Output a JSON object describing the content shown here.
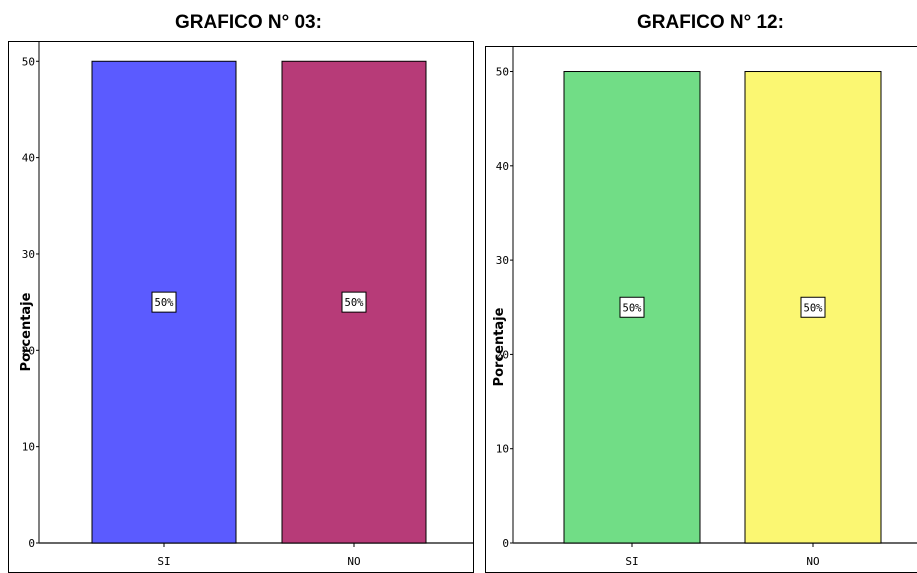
{
  "chart_data": [
    {
      "type": "bar",
      "title": "GRAFICO N° 03:",
      "xlabel": "",
      "ylabel": "Porcentaje",
      "categories": [
        "SI",
        "NO"
      ],
      "values": [
        50,
        50
      ],
      "data_labels": [
        "50%",
        "50%"
      ],
      "colors": [
        "#5b5bff",
        "#b73b78"
      ],
      "ylim": [
        0,
        52
      ],
      "yticks": [
        0,
        10,
        20,
        30,
        40,
        50
      ],
      "grid": false
    },
    {
      "type": "bar",
      "title": "GRAFICO N° 12:",
      "xlabel": "",
      "ylabel": "Porcentaje",
      "categories": [
        "SI",
        "NO"
      ],
      "values": [
        50,
        50
      ],
      "data_labels": [
        "50%",
        "50%"
      ],
      "colors": [
        "#71dd86",
        "#fbf772"
      ],
      "ylim": [
        0,
        52.6
      ],
      "yticks": [
        0,
        10,
        20,
        30,
        40,
        50
      ],
      "grid": false
    }
  ]
}
